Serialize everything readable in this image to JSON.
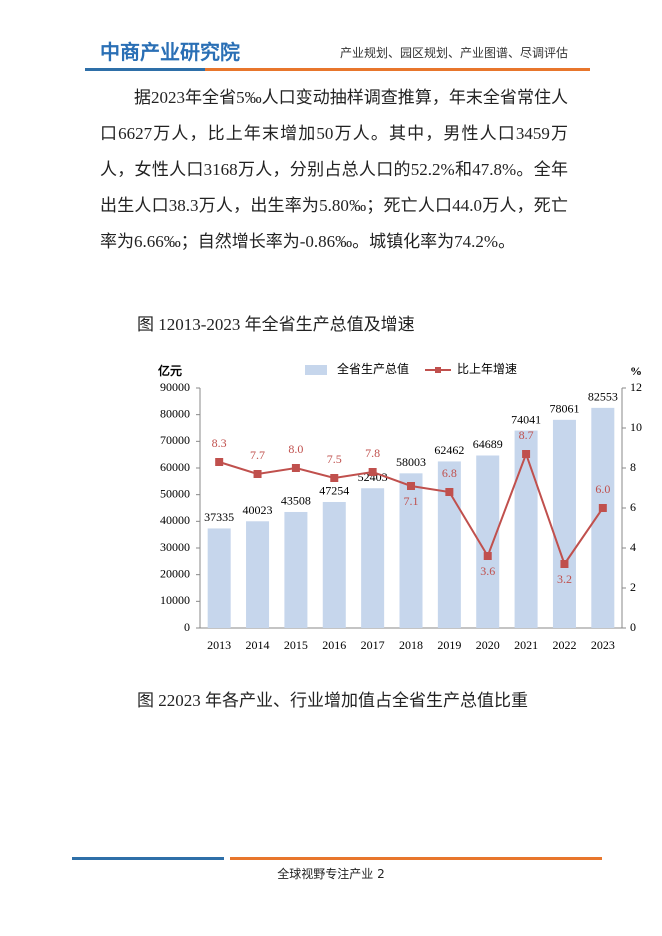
{
  "header": {
    "logo": "中商产业研究院",
    "tagline": "产业规划、园区规划、产业图谱、尽调评估"
  },
  "paragraph": "据2023年全省5‰人口变动抽样调查推算，年末全省常住人口6627万人，比上年末增加50万人。其中，男性人口3459万人，女性人口3168万人，分别占总人口的52.2%和47.8%。全年出生人口38.3万人，出生率为5.80‰；死亡人口44.0万人，死亡率为6.66‰；自然增长率为-0.86‰。城镇化率为74.2%。",
  "figure1_caption": "图 12013-2023 年全省生产总值及增速",
  "chart_data": {
    "type": "bar",
    "categories": [
      "2013",
      "2014",
      "2015",
      "2016",
      "2017",
      "2018",
      "2019",
      "2020",
      "2021",
      "2022",
      "2023"
    ],
    "series": [
      {
        "name": "全省生产总值",
        "color": "#c6d6ec",
        "values": [
          37335,
          40023,
          43508,
          47254,
          52403,
          58003,
          62462,
          64689,
          74041,
          78061,
          82553
        ]
      },
      {
        "name": "比上年增速",
        "color": "#c0504d",
        "type": "line",
        "axis": "y2",
        "values": [
          8.3,
          7.7,
          8.0,
          7.5,
          7.8,
          7.1,
          6.8,
          3.6,
          8.7,
          3.2,
          6.0
        ],
        "value_labels": [
          "8.3",
          "7.7",
          "8.0",
          "7.5",
          "7.8",
          "7.1",
          "6.8",
          "3.6",
          "8.7",
          "3.2",
          "6.0"
        ]
      }
    ],
    "ylabel": "亿元",
    "y2label": "%",
    "ylim": [
      0,
      90000
    ],
    "yticks": [
      0,
      10000,
      20000,
      30000,
      40000,
      50000,
      60000,
      70000,
      80000,
      90000
    ],
    "y2lim": [
      0,
      12
    ],
    "y2ticks": [
      0,
      2,
      4,
      6,
      8,
      10,
      12
    ],
    "legend": "top"
  },
  "figure2_caption": "图 22023 年各产业、行业增加值占全省生产总值比重",
  "footer": {
    "text": "全球视野专注产业 2"
  }
}
